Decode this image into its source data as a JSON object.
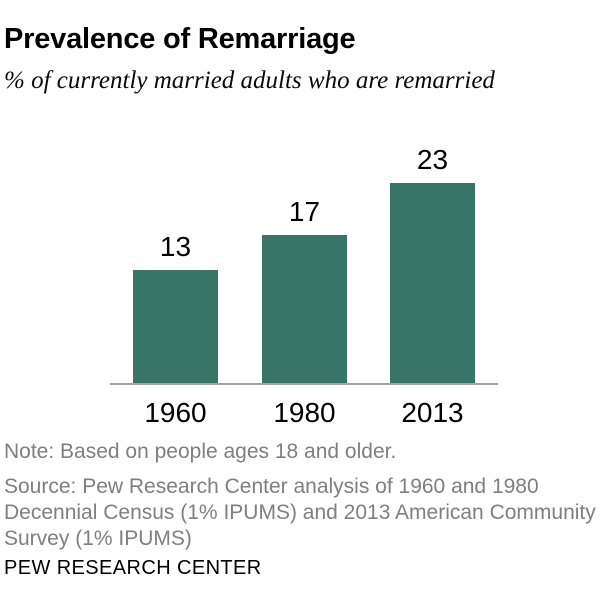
{
  "header": {
    "title": "Prevalence of Remarriage",
    "subtitle": "% of  currently married adults who are remarried"
  },
  "chart_data": {
    "type": "bar",
    "categories": [
      "1960",
      "1980",
      "2013"
    ],
    "values": [
      13,
      17,
      23
    ],
    "value_labels": [
      "13",
      "17",
      "23"
    ],
    "title": "Prevalence of Remarriage",
    "subtitle": "% of  currently married adults who are remarried",
    "xlabel": "",
    "ylabel": "",
    "ylim": [
      0,
      25
    ],
    "grid": false,
    "legend": false,
    "bar_color": "#387568",
    "axis_line_color": "#a2a2a2"
  },
  "footer": {
    "note": "Note: Based on people ages 18 and older.",
    "source_lines": [
      "Source: Pew Research Center analysis of 1960 and 1980",
      "Decennial Census (1% IPUMS) and 2013 American Community",
      "Survey (1% IPUMS)"
    ],
    "branding": "PEW RESEARCH CENTER"
  },
  "colors": {
    "bar": "#387568",
    "axis_line": "#a2a2a2",
    "muted_text": "#7f7f7f",
    "text": "#000000",
    "background": "#ffffff"
  }
}
